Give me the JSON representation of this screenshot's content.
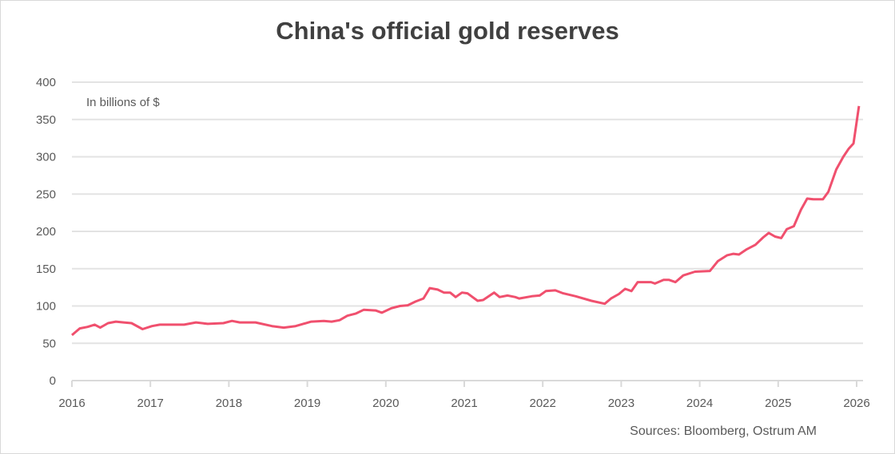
{
  "chart_data": {
    "type": "line",
    "title": "China's official gold reserves",
    "annotation": "In billions of $",
    "source": "Sources: Bloomberg, Ostrum AM",
    "xlabel": "",
    "ylabel": "",
    "xlim": [
      2016,
      2026
    ],
    "ylim": [
      0,
      400
    ],
    "x_ticks": [
      "2016",
      "2017",
      "2018",
      "2019",
      "2020",
      "2021",
      "2022",
      "2023",
      "2024",
      "2025",
      "2026"
    ],
    "y_ticks": [
      "0",
      "50",
      "100",
      "150",
      "200",
      "250",
      "300",
      "350",
      "400"
    ],
    "grid": true,
    "line_color": "#f0506e",
    "series": [
      {
        "points": [
          [
            2016.0,
            61
          ],
          [
            2016.1,
            70
          ],
          [
            2016.2,
            72
          ],
          [
            2016.29,
            75
          ],
          [
            2016.36,
            71
          ],
          [
            2016.46,
            77
          ],
          [
            2016.56,
            79
          ],
          [
            2016.66,
            78
          ],
          [
            2016.76,
            77
          ],
          [
            2016.9,
            69
          ],
          [
            2017.02,
            73
          ],
          [
            2017.12,
            75
          ],
          [
            2017.27,
            75
          ],
          [
            2017.43,
            75
          ],
          [
            2017.58,
            78
          ],
          [
            2017.73,
            76
          ],
          [
            2017.93,
            77
          ],
          [
            2018.04,
            80
          ],
          [
            2018.14,
            78
          ],
          [
            2018.34,
            78
          ],
          [
            2018.55,
            73
          ],
          [
            2018.7,
            71
          ],
          [
            2018.85,
            73
          ],
          [
            2019.05,
            79
          ],
          [
            2019.21,
            80
          ],
          [
            2019.31,
            79
          ],
          [
            2019.41,
            81
          ],
          [
            2019.51,
            87
          ],
          [
            2019.62,
            90
          ],
          [
            2019.72,
            95
          ],
          [
            2019.87,
            94
          ],
          [
            2019.95,
            91
          ],
          [
            2020.07,
            97
          ],
          [
            2020.18,
            100
          ],
          [
            2020.28,
            101
          ],
          [
            2020.38,
            106
          ],
          [
            2020.48,
            110
          ],
          [
            2020.56,
            124
          ],
          [
            2020.66,
            122
          ],
          [
            2020.74,
            118
          ],
          [
            2020.82,
            118
          ],
          [
            2020.89,
            112
          ],
          [
            2020.97,
            118
          ],
          [
            2021.04,
            117
          ],
          [
            2021.17,
            107
          ],
          [
            2021.24,
            108
          ],
          [
            2021.38,
            118
          ],
          [
            2021.45,
            112
          ],
          [
            2021.55,
            114
          ],
          [
            2021.65,
            112
          ],
          [
            2021.7,
            110
          ],
          [
            2021.86,
            113
          ],
          [
            2021.96,
            114
          ],
          [
            2022.04,
            120
          ],
          [
            2022.16,
            121
          ],
          [
            2022.26,
            117
          ],
          [
            2022.42,
            113
          ],
          [
            2022.62,
            107
          ],
          [
            2022.79,
            103
          ],
          [
            2022.87,
            110
          ],
          [
            2022.97,
            116
          ],
          [
            2023.05,
            123
          ],
          [
            2023.13,
            120
          ],
          [
            2023.21,
            132
          ],
          [
            2023.38,
            132
          ],
          [
            2023.43,
            130
          ],
          [
            2023.54,
            135
          ],
          [
            2023.61,
            135
          ],
          [
            2023.69,
            132
          ],
          [
            2023.79,
            141
          ],
          [
            2023.94,
            146
          ],
          [
            2024.13,
            147
          ],
          [
            2024.23,
            160
          ],
          [
            2024.35,
            168
          ],
          [
            2024.43,
            170
          ],
          [
            2024.5,
            169
          ],
          [
            2024.6,
            176
          ],
          [
            2024.71,
            182
          ],
          [
            2024.81,
            192
          ],
          [
            2024.88,
            198
          ],
          [
            2024.96,
            193
          ],
          [
            2025.04,
            191
          ],
          [
            2025.11,
            203
          ],
          [
            2025.2,
            207
          ],
          [
            2025.29,
            229
          ],
          [
            2025.37,
            244
          ],
          [
            2025.45,
            243
          ],
          [
            2025.57,
            243
          ],
          [
            2025.64,
            253
          ],
          [
            2025.74,
            283
          ],
          [
            2025.83,
            300
          ],
          [
            2025.9,
            311
          ],
          [
            2025.96,
            318
          ],
          [
            2026.03,
            368
          ]
        ]
      }
    ]
  }
}
